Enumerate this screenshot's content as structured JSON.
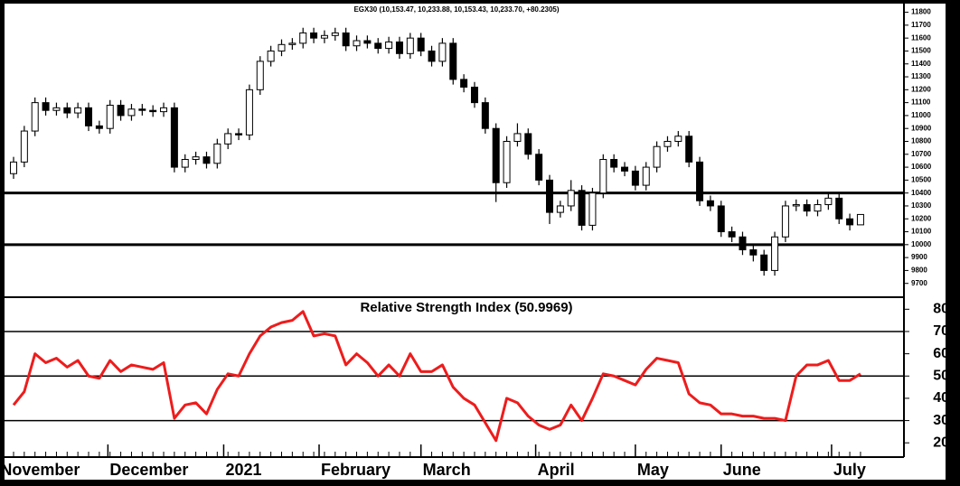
{
  "chart_data": [
    {
      "type": "candlestick",
      "title": "EGX30 (10,153.47, 10,233.88, 10,153.43, 10,233.70, +80.2305)",
      "up_color": "#ffffff",
      "down_color": "#000000",
      "open": [
        10550,
        10640,
        10880,
        11100,
        11040,
        11060,
        11020,
        11060,
        10920,
        10900,
        11080,
        11000,
        11050,
        11040,
        11030,
        11060,
        10600,
        10660,
        10680,
        10630,
        10780,
        10860,
        10850,
        11200,
        11420,
        11500,
        11550,
        11560,
        11640,
        11600,
        11620,
        11640,
        11540,
        11580,
        11560,
        11520,
        11570,
        11480,
        11600,
        11500,
        11420,
        11560,
        11280,
        11220,
        11100,
        10900,
        10480,
        10800,
        10860,
        10700,
        10500,
        10250,
        10300,
        10420,
        10150,
        10400,
        10660,
        10600,
        10570,
        10460,
        10600,
        10760,
        10800,
        10840,
        10640,
        10340,
        10300,
        10100,
        10060,
        9960,
        9920,
        9800,
        10060,
        10300,
        10310,
        10260,
        10310,
        10360,
        10200,
        10153.47
      ],
      "high": [
        10680,
        10920,
        11140,
        11140,
        11100,
        11100,
        11100,
        11100,
        10960,
        11120,
        11120,
        11090,
        11090,
        11080,
        11100,
        11100,
        10700,
        10720,
        10720,
        10820,
        10900,
        10900,
        11240,
        11460,
        11540,
        11590,
        11600,
        11680,
        11680,
        11660,
        11680,
        11680,
        11620,
        11620,
        11600,
        11610,
        11610,
        11640,
        11640,
        11540,
        11600,
        11600,
        11320,
        11260,
        11140,
        10940,
        10840,
        10940,
        10900,
        10740,
        10540,
        10340,
        10500,
        10460,
        10440,
        10700,
        10700,
        10640,
        10610,
        10640,
        10800,
        10840,
        10880,
        10880,
        10680,
        10380,
        10340,
        10140,
        10100,
        10000,
        9960,
        10100,
        10340,
        10350,
        10350,
        10350,
        10400,
        10400,
        10240,
        10233.88
      ],
      "low": [
        10510,
        10600,
        10840,
        11000,
        11000,
        10980,
        10980,
        10880,
        10860,
        10860,
        10960,
        10960,
        11000,
        10990,
        10990,
        10560,
        10560,
        10620,
        10590,
        10590,
        10740,
        10810,
        10810,
        11160,
        11380,
        11460,
        11510,
        11520,
        11560,
        11560,
        11580,
        11500,
        11500,
        11520,
        11480,
        11480,
        11440,
        11440,
        11460,
        11380,
        11380,
        11240,
        11180,
        11060,
        10860,
        10330,
        10440,
        10760,
        10660,
        10460,
        10160,
        10210,
        10260,
        10110,
        10110,
        10360,
        10560,
        10530,
        10420,
        10420,
        10560,
        10720,
        10760,
        10600,
        10300,
        10260,
        10060,
        10020,
        9920,
        9870,
        9760,
        9760,
        10020,
        10260,
        10220,
        10220,
        10270,
        10160,
        10110,
        10153.43
      ],
      "close": [
        10640,
        10880,
        11100,
        11040,
        11060,
        11020,
        11060,
        10920,
        10900,
        11080,
        11000,
        11050,
        11040,
        11030,
        11060,
        10600,
        10660,
        10680,
        10630,
        10780,
        10860,
        10850,
        11200,
        11420,
        11500,
        11550,
        11560,
        11640,
        11600,
        11620,
        11640,
        11540,
        11580,
        11560,
        11520,
        11570,
        11480,
        11600,
        11500,
        11420,
        11560,
        11280,
        11220,
        11100,
        10900,
        10480,
        10800,
        10860,
        10700,
        10500,
        10250,
        10300,
        10420,
        10150,
        10400,
        10660,
        10600,
        10570,
        10460,
        10600,
        10760,
        10800,
        10840,
        10640,
        10340,
        10300,
        10100,
        10060,
        9960,
        9920,
        9800,
        10060,
        10300,
        10310,
        10260,
        10310,
        10360,
        10200,
        10153.47,
        10233.7
      ],
      "ylim": [
        9600,
        11860
      ],
      "yticks": [
        9700,
        9800,
        9900,
        10000,
        10100,
        10200,
        10300,
        10400,
        10500,
        10600,
        10700,
        10800,
        10900,
        11000,
        11100,
        11200,
        11300,
        11400,
        11500,
        11600,
        11700,
        11800
      ],
      "reference_lines": [
        10400,
        10000
      ]
    },
    {
      "type": "line",
      "title": "Relative Strength Index (50.9969)",
      "color": "#ee1c1c",
      "values": [
        37,
        43,
        60,
        56,
        58,
        54,
        57,
        50,
        49,
        57,
        52,
        55,
        54,
        53,
        56,
        31,
        37,
        38,
        33,
        44,
        51,
        50,
        60,
        68,
        72,
        74,
        75,
        79,
        68,
        69,
        68,
        55,
        60,
        56,
        50,
        55,
        50,
        60,
        52,
        52,
        55,
        45,
        40,
        37,
        29,
        21,
        40,
        38,
        32,
        28,
        26,
        28,
        37,
        30,
        40,
        51,
        50,
        48,
        46,
        53,
        58,
        57,
        56,
        42,
        38,
        37,
        33,
        33,
        32,
        32,
        31,
        31,
        30,
        50,
        55,
        55,
        57,
        48,
        48,
        51
      ],
      "ylim": [
        14,
        85
      ],
      "yticks": [
        20,
        30,
        40,
        50,
        60,
        70,
        80
      ],
      "reference_lines": [
        70,
        50,
        30
      ],
      "xticks": [
        {
          "value": -1.4,
          "label": "November"
        },
        {
          "value": 8.8,
          "label": "December"
        },
        {
          "value": 19.6,
          "label": "2021"
        },
        {
          "value": 28.5,
          "label": "February"
        },
        {
          "value": 38,
          "label": "March"
        },
        {
          "value": 48.7,
          "label": "April"
        },
        {
          "value": 58,
          "label": "May"
        },
        {
          "value": 66,
          "label": "June"
        },
        {
          "value": 76.3,
          "label": "July"
        }
      ]
    }
  ]
}
